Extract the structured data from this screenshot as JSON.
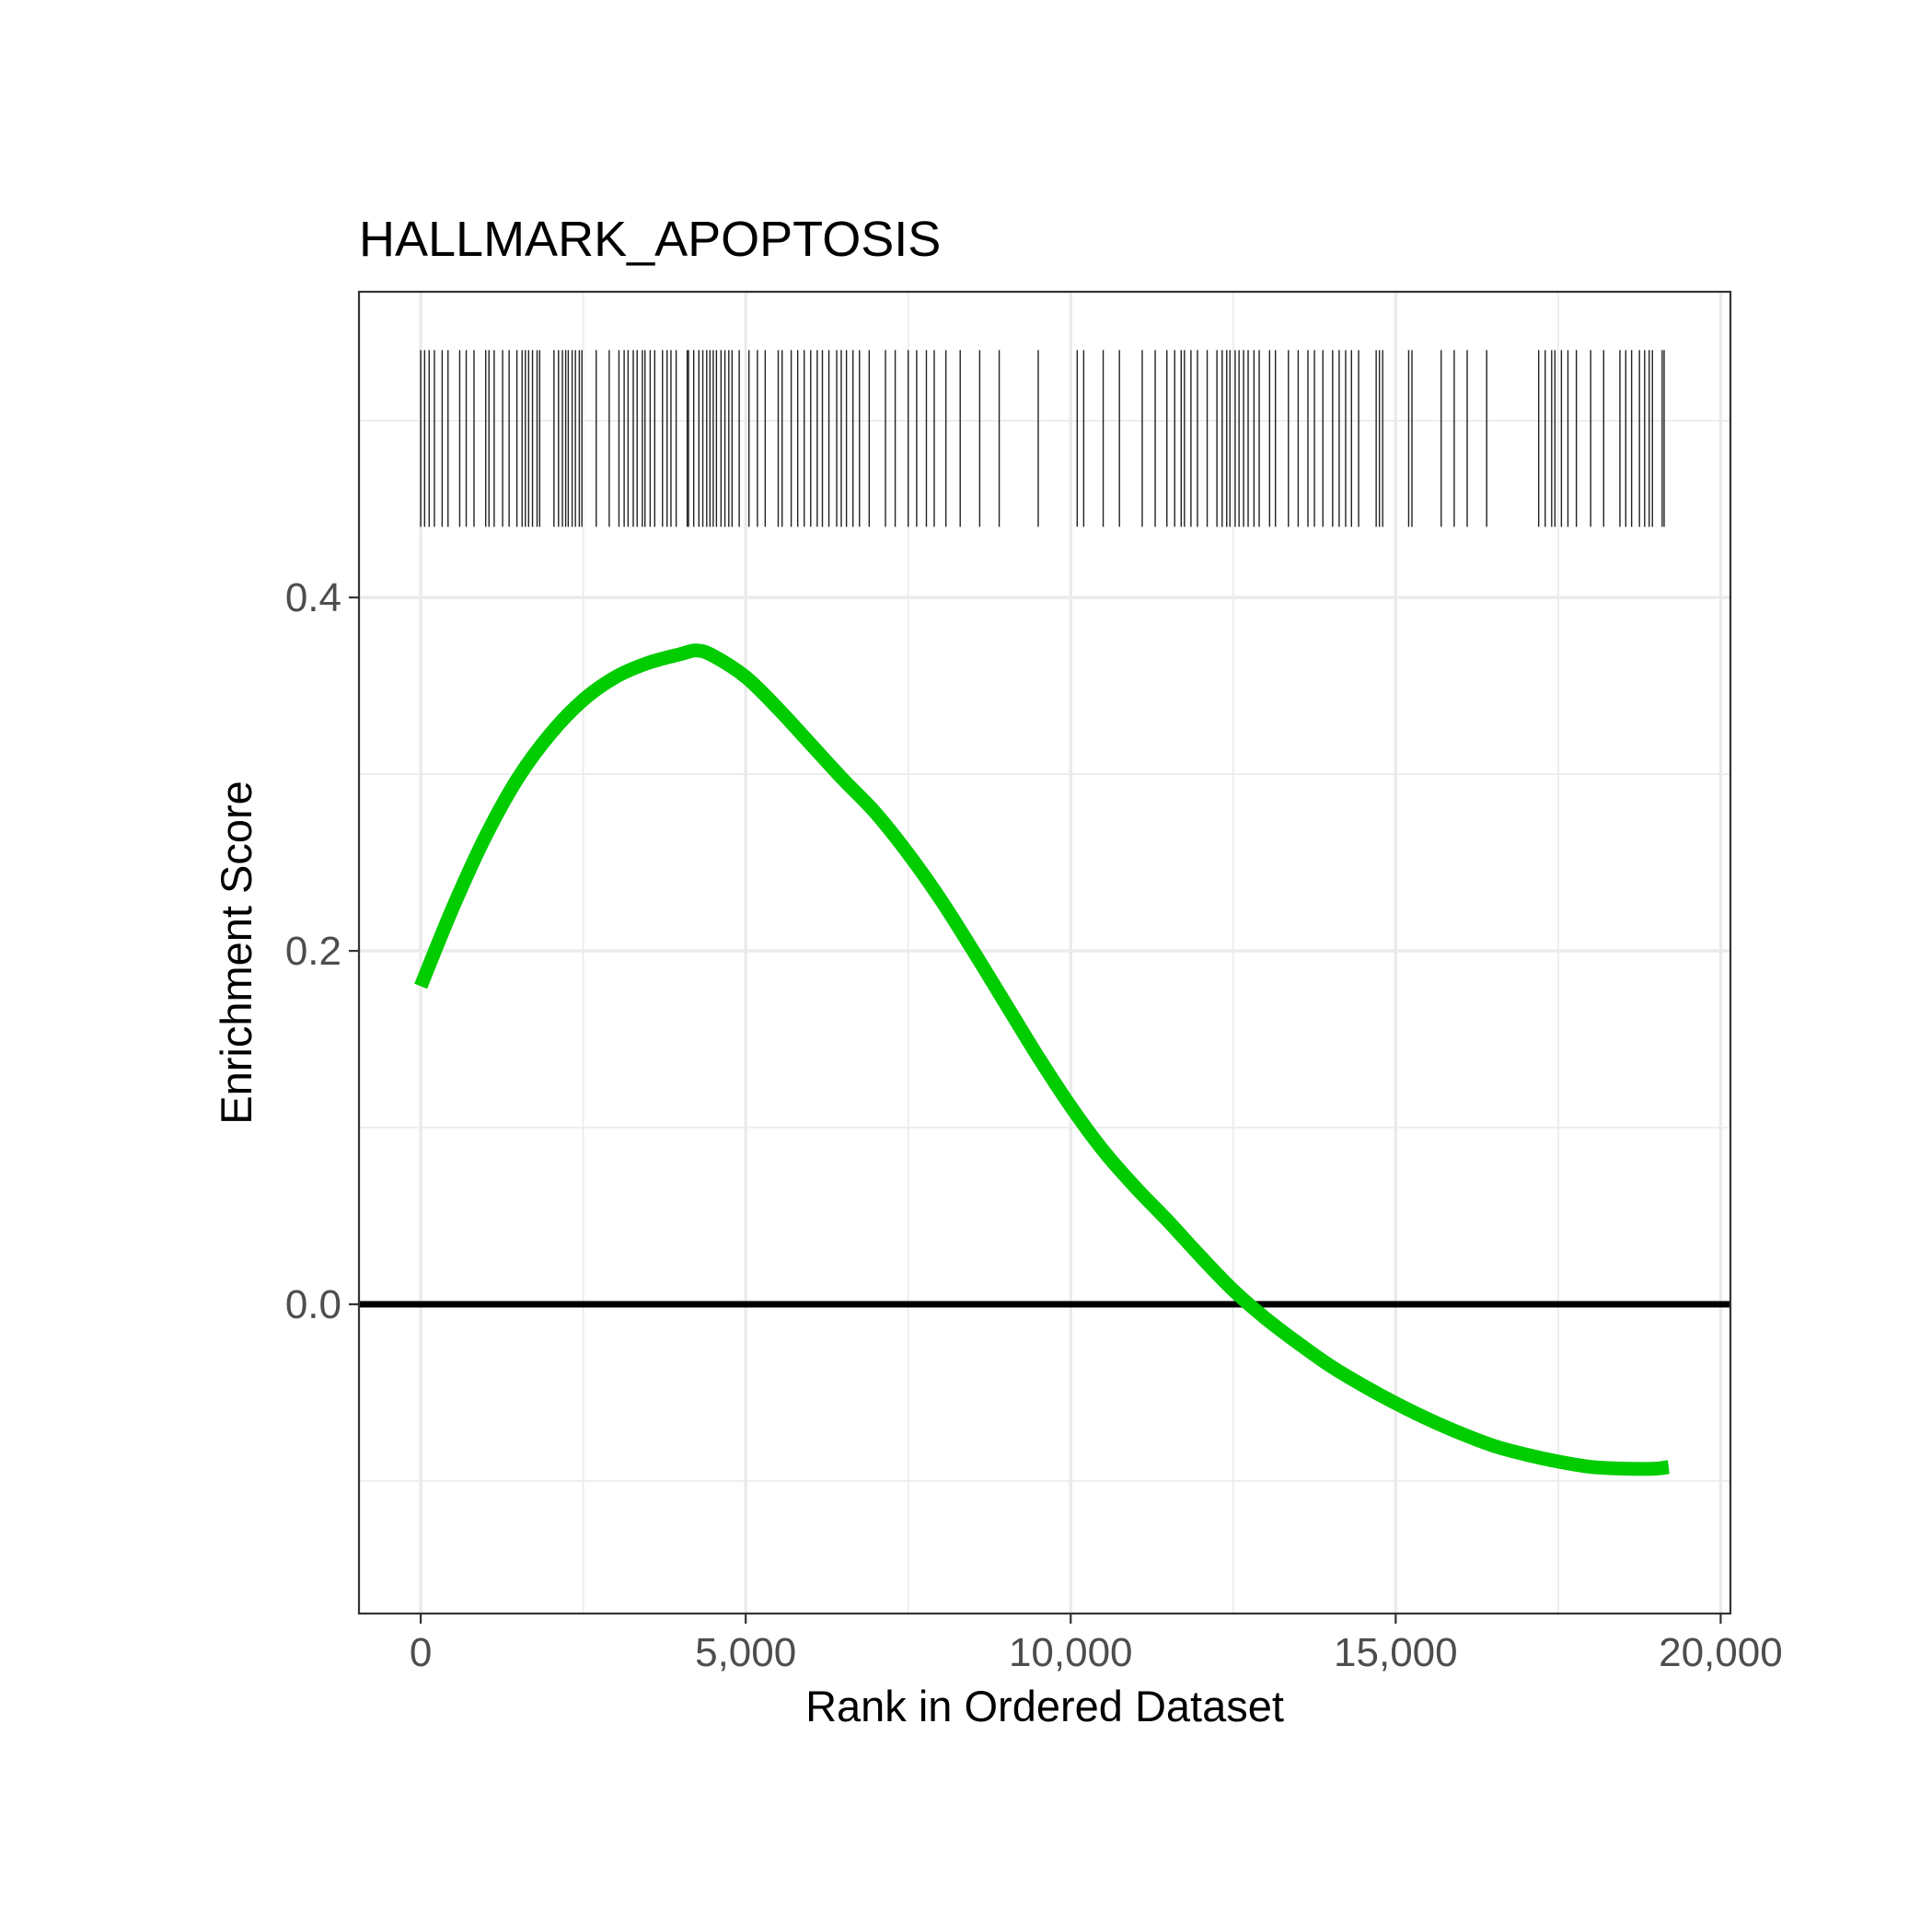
{
  "chart_data": {
    "type": "line",
    "title": "HALLMARK_APOPTOSIS",
    "xlabel": "Rank in Ordered Dataset",
    "ylabel": "Enrichment Score",
    "xlim": [
      -950,
      20150
    ],
    "ylim": [
      -0.175,
      0.573
    ],
    "x_ticks": [
      0,
      5000,
      10000,
      15000,
      20000
    ],
    "x_tick_labels": [
      "0",
      "5,000",
      "10,000",
      "15,000",
      "20,000"
    ],
    "x_minor_ticks": [
      2500,
      7500,
      12500,
      17500
    ],
    "y_ticks": [
      0.0,
      0.2,
      0.4
    ],
    "y_tick_labels": [
      "0.0",
      "0.2",
      "0.4"
    ],
    "y_minor_ticks": [
      -0.1,
      0.1,
      0.3,
      0.5
    ],
    "grid": true,
    "reference_line": {
      "y": 0.0,
      "color": "#000000"
    },
    "hit_band": {
      "y_range": [
        0.44,
        0.54
      ]
    },
    "series": [
      {
        "color": "#00cc00",
        "x": [
          0,
          500,
          1000,
          1500,
          2000,
          2500,
          3000,
          3500,
          4000,
          4250,
          4500,
          5000,
          5500,
          6000,
          6500,
          7000,
          7500,
          8000,
          8500,
          9000,
          9500,
          10000,
          10500,
          11000,
          11500,
          12000,
          12500,
          13000,
          13500,
          14000,
          14500,
          15000,
          15500,
          16000,
          16500,
          17000,
          17500,
          18000,
          18500,
          19000,
          19200
        ],
        "y": [
          0.18,
          0.225,
          0.265,
          0.298,
          0.323,
          0.342,
          0.355,
          0.363,
          0.368,
          0.37,
          0.367,
          0.355,
          0.337,
          0.317,
          0.297,
          0.278,
          0.255,
          0.229,
          0.2,
          0.17,
          0.14,
          0.112,
          0.087,
          0.066,
          0.047,
          0.027,
          0.008,
          -0.008,
          -0.022,
          -0.035,
          -0.046,
          -0.056,
          -0.065,
          -0.073,
          -0.08,
          -0.085,
          -0.089,
          -0.092,
          -0.093,
          -0.093,
          -0.092
        ]
      }
    ],
    "hits": [
      0,
      60,
      130,
      210,
      330,
      420,
      600,
      700,
      820,
      1000,
      1050,
      1130,
      1260,
      1360,
      1480,
      1560,
      1610,
      1660,
      1720,
      1790,
      1830,
      2050,
      2120,
      2180,
      2230,
      2270,
      2330,
      2380,
      2440,
      2480,
      2700,
      2900,
      3050,
      3130,
      3190,
      3270,
      3330,
      3410,
      3450,
      3530,
      3600,
      3720,
      3790,
      3850,
      3930,
      4100,
      4120,
      4200,
      4280,
      4340,
      4400,
      4450,
      4500,
      4550,
      4620,
      4680,
      4740,
      4790,
      4900,
      5050,
      5180,
      5300,
      5500,
      5560,
      5700,
      5800,
      5900,
      6000,
      6100,
      6180,
      6280,
      6400,
      6470,
      6550,
      6650,
      6750,
      6900,
      7150,
      7300,
      7500,
      7630,
      7780,
      7900,
      8080,
      8300,
      8600,
      8900,
      9500,
      10100,
      10200,
      10500,
      10750,
      11100,
      11300,
      11480,
      11600,
      11700,
      11750,
      11850,
      11950,
      12100,
      12250,
      12330,
      12400,
      12450,
      12530,
      12590,
      12660,
      12730,
      12820,
      12900,
      13060,
      13150,
      13350,
      13500,
      13650,
      13750,
      13880,
      14030,
      14130,
      14230,
      14320,
      14430,
      14700,
      14750,
      14800,
      15200,
      15250,
      15700,
      15900,
      16100,
      16400,
      17200,
      17300,
      17400,
      17450,
      17550,
      17650,
      17780,
      18000,
      18200,
      18450,
      18540,
      18630,
      18750,
      18830,
      18900,
      18950,
      19100,
      19130
    ]
  }
}
